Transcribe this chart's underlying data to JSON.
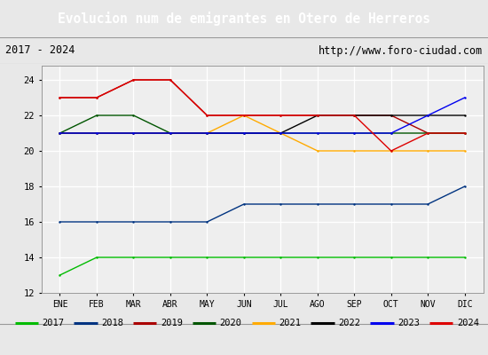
{
  "title": "Evolucion num de emigrantes en Otero de Herreros",
  "subtitle_left": "2017 - 2024",
  "subtitle_right": "http://www.foro-ciudad.com",
  "months": [
    "ENE",
    "FEB",
    "MAR",
    "ABR",
    "MAY",
    "JUN",
    "JUL",
    "AGO",
    "SEP",
    "OCT",
    "NOV",
    "DIC"
  ],
  "series": [
    {
      "year": "2017",
      "color": "#00bb00",
      "values": [
        13,
        14,
        14,
        14,
        14,
        14,
        14,
        14,
        14,
        14,
        14,
        14
      ]
    },
    {
      "year": "2018",
      "color": "#003380",
      "values": [
        16,
        16,
        16,
        16,
        16,
        17,
        17,
        17,
        17,
        17,
        17,
        18
      ]
    },
    {
      "year": "2019",
      "color": "#aa0000",
      "values": [
        23,
        23,
        24,
        24,
        22,
        22,
        22,
        22,
        22,
        22,
        21,
        21
      ]
    },
    {
      "year": "2020",
      "color": "#005500",
      "values": [
        21,
        22,
        22,
        21,
        21,
        21,
        21,
        21,
        21,
        21,
        21,
        21
      ]
    },
    {
      "year": "2021",
      "color": "#ffaa00",
      "values": [
        21,
        21,
        21,
        21,
        21,
        22,
        21,
        20,
        20,
        20,
        20,
        20
      ]
    },
    {
      "year": "2022",
      "color": "#000000",
      "values": [
        21,
        21,
        21,
        21,
        21,
        21,
        21,
        22,
        22,
        22,
        22,
        22
      ]
    },
    {
      "year": "2023",
      "color": "#0000ee",
      "values": [
        21,
        21,
        21,
        21,
        21,
        21,
        21,
        21,
        21,
        21,
        22,
        23
      ]
    },
    {
      "year": "2024",
      "color": "#dd0000",
      "values": [
        23,
        23,
        24,
        24,
        22,
        22,
        22,
        22,
        22,
        20,
        21,
        21
      ]
    }
  ],
  "ylim": [
    12,
    24.8
  ],
  "yticks": [
    12,
    14,
    16,
    18,
    20,
    22,
    24
  ],
  "title_bg": "#5599cc",
  "title_color": "#ffffff",
  "sub_bg": "#dddddd",
  "plot_bg": "#eeeeee",
  "legend_bg": "#e8e8e8",
  "grid_color": "#ffffff",
  "border_color": "#999999"
}
